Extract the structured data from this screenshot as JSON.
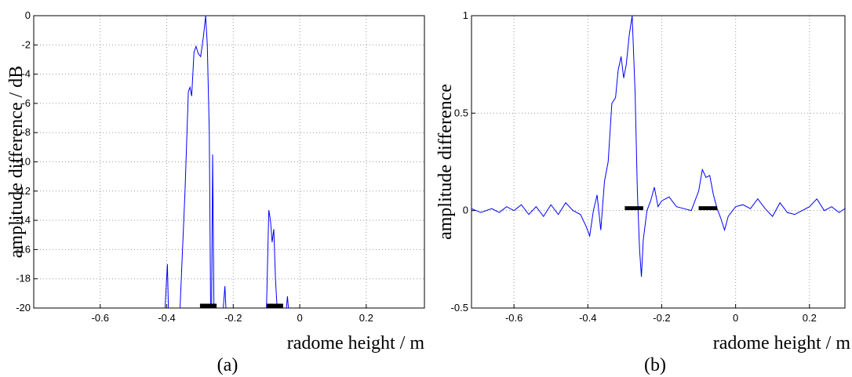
{
  "chart_data": [
    {
      "type": "line",
      "color": "#0000ff",
      "grid": true,
      "xlabel": "radome height / m",
      "ylabel": "amplitude difference / dB",
      "caption": "(a)",
      "xlim": [
        -0.8,
        0.375
      ],
      "ylim": [
        -20,
        0
      ],
      "xticks": [
        -0.6,
        -0.4,
        -0.2,
        0,
        0.2
      ],
      "yticks": [
        -20,
        -18,
        -16,
        -14,
        -12,
        -10,
        -8,
        -6,
        -4,
        -2,
        0
      ],
      "x": [
        -0.405,
        -0.398,
        -0.395,
        null,
        -0.36,
        -0.345,
        -0.335,
        -0.33,
        -0.325,
        -0.318,
        -0.312,
        -0.305,
        -0.298,
        -0.29,
        -0.283,
        -0.278,
        -0.272,
        -0.268,
        null,
        -0.265,
        -0.262,
        -0.258,
        null,
        -0.23,
        -0.225,
        -0.222,
        null,
        -0.1,
        -0.093,
        -0.088,
        -0.083,
        -0.078,
        -0.073,
        -0.068,
        null,
        -0.04,
        -0.037,
        -0.034
      ],
      "values": [
        -20,
        -17,
        -20,
        null,
        -20,
        -12,
        -5.2,
        -4.9,
        -5.5,
        -2.5,
        -2.1,
        -2.6,
        -2.8,
        -1.5,
        0,
        -2,
        -8,
        -20,
        null,
        -20,
        -9.5,
        -20,
        null,
        -20,
        -18.5,
        -20,
        null,
        -20,
        -13.3,
        -14,
        -15.5,
        -14.6,
        -18,
        -20,
        null,
        -20,
        -19.2,
        -20
      ],
      "segments": [
        {
          "x": [
            -0.3,
            -0.25
          ],
          "y": -20
        },
        {
          "x": [
            -0.1,
            -0.05
          ],
          "y": -20
        }
      ]
    },
    {
      "type": "line",
      "color": "#0000ff",
      "grid": true,
      "xlabel": "radome height / m",
      "ylabel": "amplitude difference",
      "caption": "(b)",
      "xlim": [
        -0.715,
        0.296
      ],
      "ylim": [
        -0.5,
        1
      ],
      "xticks": [
        -0.6,
        -0.4,
        -0.2,
        0,
        0.2
      ],
      "yticks": [
        -0.5,
        0,
        0.5,
        1
      ],
      "x": [
        -0.715,
        -0.69,
        -0.66,
        -0.64,
        -0.62,
        -0.6,
        -0.58,
        -0.56,
        -0.54,
        -0.52,
        -0.5,
        -0.48,
        -0.46,
        -0.44,
        -0.42,
        -0.405,
        -0.395,
        -0.385,
        -0.375,
        -0.365,
        -0.355,
        -0.345,
        -0.335,
        -0.325,
        -0.318,
        -0.31,
        -0.303,
        -0.296,
        -0.288,
        -0.28,
        -0.272,
        -0.266,
        -0.26,
        -0.255,
        -0.25,
        -0.24,
        -0.23,
        -0.22,
        -0.21,
        -0.2,
        -0.18,
        -0.16,
        -0.14,
        -0.12,
        -0.11,
        -0.1,
        -0.09,
        -0.08,
        -0.07,
        -0.06,
        -0.05,
        -0.04,
        -0.03,
        -0.02,
        0.0,
        0.02,
        0.04,
        0.06,
        0.08,
        0.1,
        0.12,
        0.14,
        0.16,
        0.18,
        0.2,
        0.22,
        0.24,
        0.26,
        0.28,
        0.296
      ],
      "values": [
        0.01,
        -0.01,
        0.01,
        -0.01,
        0.02,
        0.0,
        0.03,
        -0.02,
        0.02,
        -0.03,
        0.03,
        -0.02,
        0.04,
        0.0,
        -0.02,
        -0.08,
        -0.13,
        0.0,
        0.08,
        -0.1,
        0.15,
        0.25,
        0.55,
        0.58,
        0.72,
        0.79,
        0.68,
        0.75,
        0.9,
        1.0,
        0.6,
        0.1,
        -0.2,
        -0.34,
        -0.15,
        0.0,
        0.05,
        0.12,
        0.02,
        0.05,
        0.07,
        0.02,
        0.01,
        0.0,
        0.05,
        0.1,
        0.21,
        0.17,
        0.18,
        0.08,
        0.01,
        -0.04,
        -0.1,
        -0.03,
        0.02,
        0.03,
        0.01,
        0.06,
        0.01,
        -0.03,
        0.04,
        -0.01,
        -0.02,
        0.0,
        0.02,
        0.06,
        0.0,
        0.02,
        -0.01,
        0.01
      ],
      "segments": [
        {
          "x": [
            -0.3,
            -0.25
          ],
          "y": 0
        },
        {
          "x": [
            -0.1,
            -0.05
          ],
          "y": 0
        }
      ]
    }
  ]
}
